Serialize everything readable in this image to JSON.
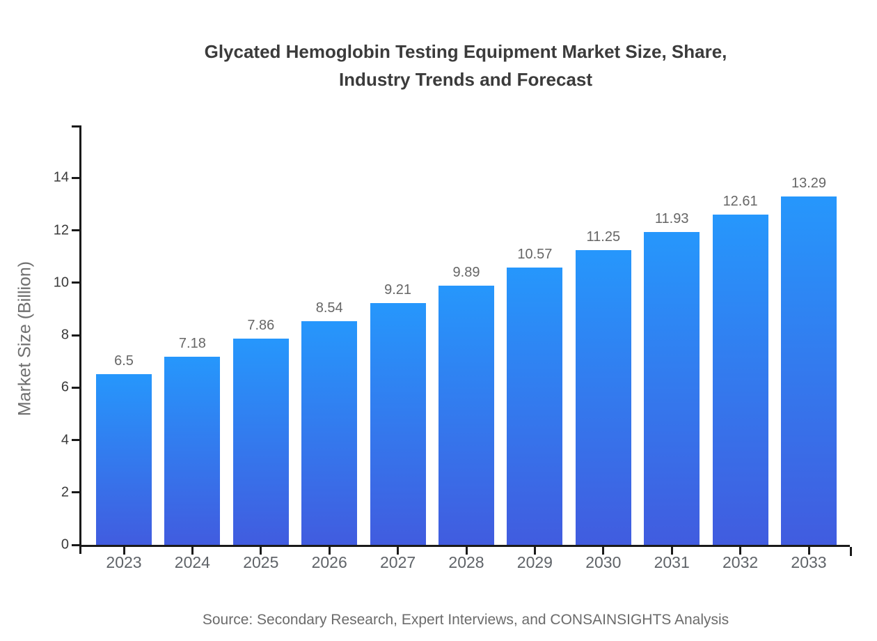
{
  "title_lines": [
    "Glycated Hemoglobin Testing Equipment Market Size, Share,",
    "Industry Trends and Forecast"
  ],
  "source_note": "Source: Secondary Research, Expert Interviews, and CONSAINSIGHTS Analysis",
  "colors": {
    "bar_gradient_top": "#2697fc",
    "bar_gradient_bottom": "#415cdf",
    "axis": "#1a1a1a",
    "title_text": "#3b3b3b",
    "y_tick_text": "#3a3a3a",
    "x_tick_text": "#5f6368",
    "value_label_text": "#666666",
    "y_axis_title_text": "#6f6f6f",
    "source_text": "#6b6b6b"
  },
  "chart_data": {
    "type": "bar",
    "title": "Glycated Hemoglobin Testing Equipment Market Size, Share, Industry Trends and Forecast",
    "xlabel": "",
    "ylabel": "Market Size (Billion)",
    "categories": [
      "2023",
      "2024",
      "2025",
      "2026",
      "2027",
      "2028",
      "2029",
      "2030",
      "2031",
      "2032",
      "2033"
    ],
    "values": [
      6.5,
      7.18,
      7.86,
      8.54,
      9.21,
      9.89,
      10.57,
      11.25,
      11.93,
      12.61,
      13.29
    ],
    "value_labels": [
      "6.5",
      "7.18",
      "7.86",
      "8.54",
      "9.21",
      "9.89",
      "10.57",
      "11.25",
      "11.93",
      "12.61",
      "13.29"
    ],
    "ylim": [
      0,
      16
    ],
    "yticks": [
      0,
      2,
      4,
      6,
      8,
      10,
      12,
      14
    ],
    "grid": false,
    "legend_position": "none",
    "source": "Source: Secondary Research, Expert Interviews, and CONSAINSIGHTS Analysis"
  }
}
